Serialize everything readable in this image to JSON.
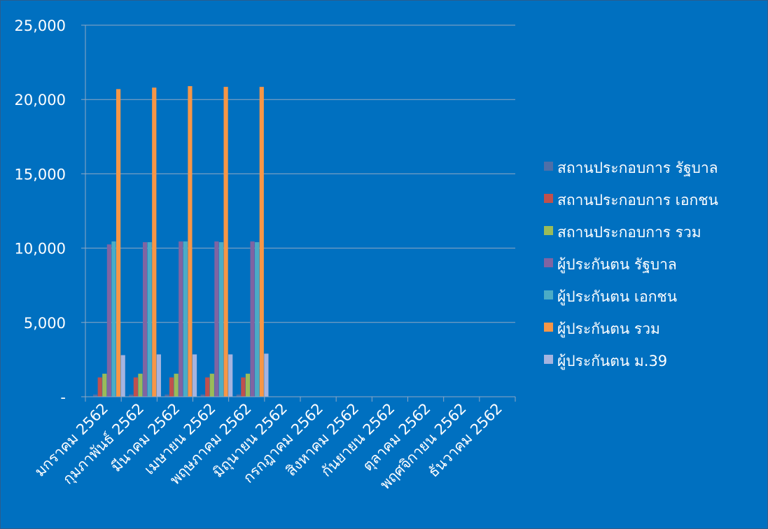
{
  "chart_data": {
    "type": "bar",
    "title": "",
    "xlabel": "",
    "ylabel": "",
    "ylim": [
      0,
      25000
    ],
    "y_ticks": [
      0,
      5000,
      10000,
      15000,
      20000,
      25000
    ],
    "y_tick_labels": [
      "-",
      "5,000",
      "10,000",
      "15,000",
      "20,000",
      "25,000"
    ],
    "grid": true,
    "legend_position": "right",
    "categories": [
      "มกราคม 2562",
      "กุมภาพันธ์ 2562",
      "มีนาคม 2562",
      "เมษายน 2562",
      "พฤษภาคม 2562",
      "มิถุนายน 2562",
      "กรกฎาคม 2562",
      "สิงหาคม 2562",
      "กันยายน 2562",
      "ตุลาคม 2562",
      "พฤศจิกายน 2562",
      "ธันวาคม 2562"
    ],
    "series": [
      {
        "name": "สถานประกอบการ รัฐบาล",
        "color": "#4f6fa8",
        "values": [
          150,
          150,
          150,
          150,
          150,
          null,
          null,
          null,
          null,
          null,
          null,
          null
        ]
      },
      {
        "name": "สถานประกอบการ เอกชน",
        "color": "#c0504d",
        "values": [
          1300,
          1300,
          1300,
          1300,
          1300,
          null,
          null,
          null,
          null,
          null,
          null,
          null
        ]
      },
      {
        "name": "สถานประกอบการ รวม",
        "color": "#9bbb59",
        "values": [
          1550,
          1550,
          1550,
          1550,
          1550,
          null,
          null,
          null,
          null,
          null,
          null,
          null
        ]
      },
      {
        "name": "ผู้ประกันตน รัฐบาล",
        "color": "#8064a2",
        "values": [
          10250,
          10400,
          10450,
          10450,
          10450,
          null,
          null,
          null,
          null,
          null,
          null,
          null
        ]
      },
      {
        "name": "ผู้ประกันตน เอกชน",
        "color": "#4bacc6",
        "values": [
          10450,
          10400,
          10450,
          10400,
          10400,
          null,
          null,
          null,
          null,
          null,
          null,
          null
        ]
      },
      {
        "name": "ผู้ประกันตน รวม",
        "color": "#f79646",
        "values": [
          20700,
          20800,
          20900,
          20850,
          20850,
          null,
          null,
          null,
          null,
          null,
          null,
          null
        ]
      },
      {
        "name": "ผู้ประกันตน ม.39",
        "color": "#a5b4e0",
        "values": [
          2800,
          2850,
          2850,
          2850,
          2900,
          null,
          null,
          null,
          null,
          null,
          null,
          null
        ]
      }
    ]
  }
}
